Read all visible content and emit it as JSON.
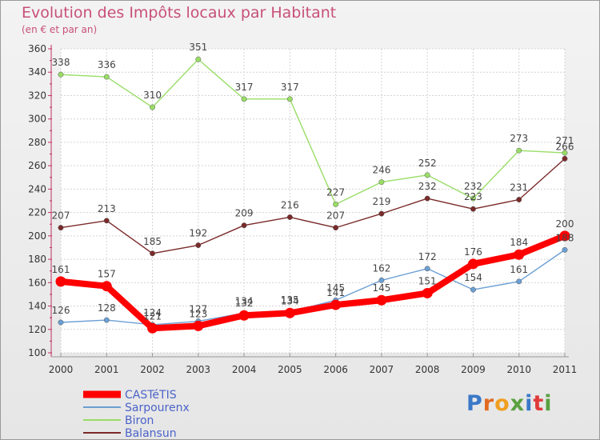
{
  "chart_data": {
    "type": "line",
    "title": "Evolution des Impôts locaux par Habitant",
    "subtitle": "(en € et par an)",
    "xlabel": "",
    "ylabel": "",
    "x": [
      "2000",
      "2001",
      "2002",
      "2003",
      "2004",
      "2005",
      "2006",
      "2007",
      "2008",
      "2009",
      "2010",
      "2011"
    ],
    "ylim": [
      100,
      360
    ],
    "yticks": [
      100,
      120,
      140,
      160,
      180,
      200,
      220,
      240,
      260,
      280,
      300,
      320,
      340,
      360
    ],
    "grid": true,
    "legend_position": "bottom-left",
    "series": [
      {
        "name": "CASTéTIS",
        "color": "#ff0000",
        "emphasis": true,
        "values": [
          161,
          157,
          121,
          123,
          132,
          134,
          141,
          145,
          151,
          176,
          184,
          200
        ]
      },
      {
        "name": "Sarpourenx",
        "color": "#6b9fd4",
        "values": [
          126,
          128,
          124,
          127,
          134,
          135,
          145,
          162,
          172,
          154,
          161,
          188
        ]
      },
      {
        "name": "Biron",
        "color": "#99dd66",
        "values": [
          338,
          336,
          310,
          351,
          317,
          317,
          227,
          246,
          252,
          232,
          273,
          271
        ]
      },
      {
        "name": "Balansun",
        "color": "#7a2a2a",
        "values": [
          207,
          213,
          185,
          192,
          209,
          216,
          207,
          219,
          232,
          223,
          231,
          266
        ]
      }
    ]
  },
  "logo": {
    "text": "Proxiti",
    "letter_colors": [
      "#3a78c8",
      "#e06a20",
      "#f0a020",
      "#5aa040",
      "#3a78c8",
      "#e03a3a",
      "#5aa040"
    ]
  }
}
